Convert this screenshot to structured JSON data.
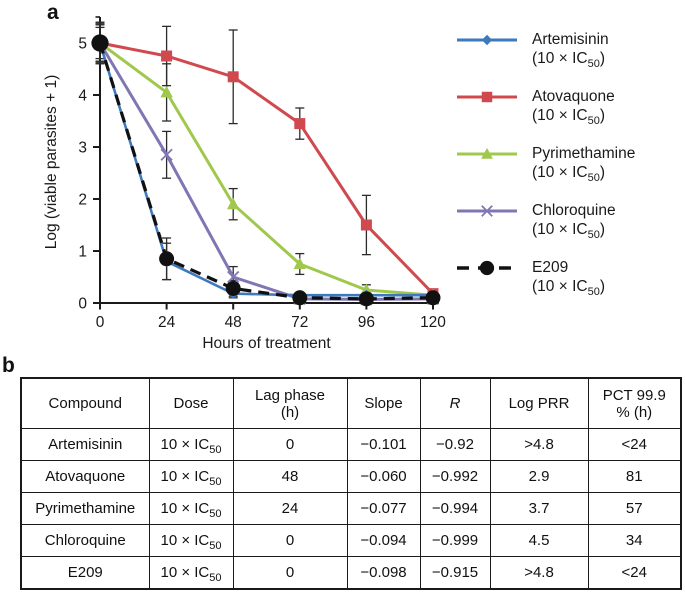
{
  "panels": {
    "a_label": "a",
    "b_label": "b"
  },
  "chart_data": {
    "type": "line",
    "x": [
      0,
      24,
      48,
      72,
      96,
      120
    ],
    "xlabel": "Hours of treatment",
    "ylabel": "Log (viable parasites + 1)",
    "xlim": [
      0,
      120
    ],
    "ylim": [
      0,
      5.5
    ],
    "xticks": [
      0,
      24,
      48,
      72,
      96,
      120
    ],
    "yticks": [
      0,
      1,
      2,
      3,
      4,
      5
    ],
    "grid": false,
    "legend_position": "right",
    "axis_color": "#1a1a1a",
    "error_bar_color": "#2b2b2b",
    "series": [
      {
        "name": "Artemisinin",
        "dose_pre": "(10 × IC",
        "dose_sub": "50",
        "dose_suf": ")",
        "color": "#3e79bd",
        "marker": "diamond",
        "line_style": "solid",
        "values": [
          5,
          0.8,
          0.18,
          0.15,
          0.15,
          0.15
        ],
        "errors": [
          0.35,
          0.35,
          0.08,
          0.05,
          0.04,
          0.04
        ]
      },
      {
        "name": "Atovaquone",
        "dose_pre": "(10 × IC",
        "dose_sub": "50",
        "dose_suf": ")",
        "color": "#d0494f",
        "marker": "square",
        "line_style": "solid",
        "values": [
          5,
          4.75,
          4.35,
          3.45,
          1.5,
          0.18
        ],
        "errors": [
          0.38,
          0.57,
          0.9,
          0.3,
          0.57,
          0.08
        ]
      },
      {
        "name": "Pyrimethamine",
        "dose_pre": "(10 × IC",
        "dose_sub": "50",
        "dose_suf": ")",
        "color": "#9fc84c",
        "marker": "triangle",
        "line_style": "solid",
        "values": [
          5,
          4.05,
          1.9,
          0.75,
          0.25,
          0.15
        ],
        "errors": [
          0.35,
          0.55,
          0.3,
          0.2,
          0.1,
          0.05
        ]
      },
      {
        "name": "Chloroquine",
        "dose_pre": "(10 × IC",
        "dose_sub": "50",
        "dose_suf": ")",
        "color": "#8076b4",
        "marker": "x",
        "line_style": "solid",
        "values": [
          5,
          2.85,
          0.5,
          0.08,
          0.07,
          0.08
        ],
        "errors": [
          0.3,
          0.45,
          0.2,
          0.05,
          0.04,
          0.04
        ]
      },
      {
        "name": "E209",
        "dose_pre": "(10 × IC",
        "dose_sub": "50",
        "dose_suf": ")",
        "color": "#111111",
        "marker": "circle",
        "line_style": "dashed",
        "values": [
          5,
          0.85,
          0.28,
          0.1,
          0.08,
          0.1
        ],
        "errors": [
          0.4,
          0.4,
          0.15,
          0.07,
          0.09,
          0.06
        ]
      }
    ]
  },
  "table": {
    "col_headers": [
      {
        "l1": "Compound",
        "l2": ""
      },
      {
        "l1": "Dose",
        "l2": ""
      },
      {
        "l1": "Lag phase",
        "l2": "(h)"
      },
      {
        "l1": "Slope",
        "l2": ""
      },
      {
        "l1": "R",
        "l2": ""
      },
      {
        "l1": "Log PRR",
        "l2": ""
      },
      {
        "l1": "PCT 99.9",
        "l2": "% (h)"
      }
    ],
    "rows": [
      {
        "compound": "Artemisinin",
        "dose_pre": "10 × IC",
        "dose_sub": "50",
        "lag": "0",
        "slope": "−0.101",
        "r": "−0.92",
        "log_prr": ">4.8",
        "pct": "<24"
      },
      {
        "compound": "Atovaquone",
        "dose_pre": "10 × IC",
        "dose_sub": "50",
        "lag": "48",
        "slope": "−0.060",
        "r": "−0.992",
        "log_prr": "2.9",
        "pct": "81"
      },
      {
        "compound": "Pyrimethamine",
        "dose_pre": "10 × IC",
        "dose_sub": "50",
        "lag": "24",
        "slope": "−0.077",
        "r": "−0.994",
        "log_prr": "3.7",
        "pct": "57"
      },
      {
        "compound": "Chloroquine",
        "dose_pre": "10 × IC",
        "dose_sub": "50",
        "lag": "0",
        "slope": "−0.094",
        "r": "−0.999",
        "log_prr": "4.5",
        "pct": "34"
      },
      {
        "compound": "E209",
        "dose_pre": "10 × IC",
        "dose_sub": "50",
        "lag": "0",
        "slope": "−0.098",
        "r": "−0.915",
        "log_prr": ">4.8",
        "pct": "<24"
      }
    ]
  }
}
